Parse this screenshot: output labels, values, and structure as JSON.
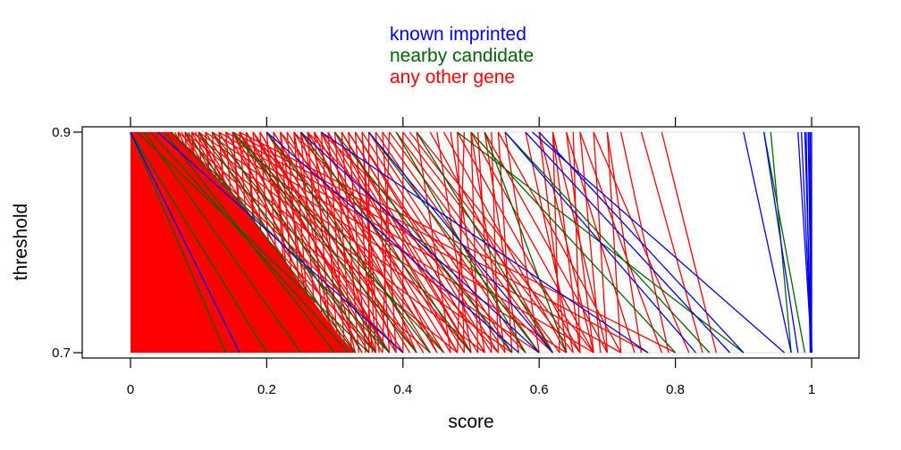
{
  "chart_data": {
    "type": "line",
    "xlabel": "score",
    "ylabel": "threshold",
    "xlim": [
      -0.07,
      1.07
    ],
    "ylim": [
      0.7,
      0.9
    ],
    "xticks": [
      {
        "value": 0,
        "label": "0"
      },
      {
        "value": 0.2,
        "label": "0.2"
      },
      {
        "value": 0.4,
        "label": "0.4"
      },
      {
        "value": 0.6,
        "label": "0.6"
      },
      {
        "value": 0.8,
        "label": "0.8"
      },
      {
        "value": 1,
        "label": "1"
      }
    ],
    "yticks": [
      {
        "value": 0.7,
        "label": "0.7"
      },
      {
        "value": 0.9,
        "label": "0.9"
      }
    ],
    "grid": false,
    "legend_position": "top-center",
    "legend": [
      {
        "label": "known imprinted",
        "color": "#0000ee"
      },
      {
        "label": "nearby candidate",
        "color": "#006400"
      },
      {
        "label": "any other gene",
        "color": "#ff0000"
      }
    ],
    "series": [
      {
        "name": "any other gene",
        "color": "#ff0000",
        "segments": [
          [
            0.003,
            0.03
          ],
          [
            0.005,
            0.04
          ],
          [
            0.008,
            0.05
          ],
          [
            0.01,
            0.06
          ],
          [
            0.012,
            0.07
          ],
          [
            0.015,
            0.08
          ],
          [
            0.018,
            0.09
          ],
          [
            0.02,
            0.1
          ],
          [
            0.022,
            0.11
          ],
          [
            0.025,
            0.12
          ],
          [
            0.028,
            0.13
          ],
          [
            0.03,
            0.14
          ],
          [
            0.032,
            0.15
          ],
          [
            0.035,
            0.16
          ],
          [
            0.038,
            0.17
          ],
          [
            0.04,
            0.18
          ],
          [
            0.045,
            0.19
          ],
          [
            0.05,
            0.2
          ],
          [
            0.055,
            0.21
          ],
          [
            0.06,
            0.22
          ],
          [
            0.065,
            0.23
          ],
          [
            0.07,
            0.24
          ],
          [
            0.075,
            0.25
          ],
          [
            0.08,
            0.26
          ],
          [
            0.085,
            0.27
          ],
          [
            0.09,
            0.28
          ],
          [
            0.095,
            0.29
          ],
          [
            0.1,
            0.3
          ],
          [
            0.11,
            0.31
          ],
          [
            0.12,
            0.32
          ],
          [
            0.13,
            0.33
          ],
          [
            0.14,
            0.34
          ],
          [
            0.15,
            0.35
          ],
          [
            0.16,
            0.36
          ],
          [
            0.17,
            0.37
          ],
          [
            0.18,
            0.38
          ],
          [
            0.19,
            0.39
          ],
          [
            0.2,
            0.4
          ],
          [
            0.21,
            0.41
          ],
          [
            0.22,
            0.42
          ],
          [
            0.23,
            0.43
          ],
          [
            0.24,
            0.44
          ],
          [
            0.25,
            0.45
          ],
          [
            0.26,
            0.46
          ],
          [
            0.27,
            0.47
          ],
          [
            0.28,
            0.48
          ],
          [
            0.29,
            0.49
          ],
          [
            0.3,
            0.5
          ],
          [
            0.31,
            0.51
          ],
          [
            0.32,
            0.52
          ],
          [
            0.33,
            0.53
          ],
          [
            0.34,
            0.55
          ],
          [
            0.35,
            0.56
          ],
          [
            0.36,
            0.58
          ],
          [
            0.37,
            0.6
          ],
          [
            0.38,
            0.62
          ],
          [
            0.39,
            0.63
          ],
          [
            0.4,
            0.65
          ],
          [
            0.41,
            0.66
          ],
          [
            0.42,
            0.68
          ],
          [
            0.0,
            0.02
          ],
          [
            0.005,
            0.025
          ],
          [
            0.01,
            0.035
          ],
          [
            0.02,
            0.045
          ],
          [
            0.03,
            0.055
          ],
          [
            0.04,
            0.065
          ],
          [
            0.05,
            0.075
          ],
          [
            0.06,
            0.085
          ],
          [
            0.07,
            0.095
          ],
          [
            0.08,
            0.105
          ],
          [
            0.09,
            0.115
          ],
          [
            0.1,
            0.125
          ],
          [
            0.11,
            0.135
          ],
          [
            0.12,
            0.145
          ],
          [
            0.13,
            0.155
          ],
          [
            0.14,
            0.165
          ],
          [
            0.15,
            0.175
          ],
          [
            0.16,
            0.185
          ],
          [
            0.17,
            0.195
          ],
          [
            0.18,
            0.205
          ],
          [
            0.19,
            0.215
          ],
          [
            0.2,
            0.225
          ],
          [
            0.21,
            0.235
          ],
          [
            0.22,
            0.245
          ],
          [
            0.23,
            0.255
          ],
          [
            0.24,
            0.265
          ],
          [
            0.25,
            0.275
          ],
          [
            0.26,
            0.285
          ],
          [
            0.27,
            0.295
          ],
          [
            0.28,
            0.305
          ],
          [
            0.29,
            0.315
          ],
          [
            0.3,
            0.325
          ],
          [
            0.31,
            0.335
          ],
          [
            0.32,
            0.345
          ],
          [
            0.33,
            0.355
          ],
          [
            0.34,
            0.365
          ],
          [
            0.06,
            0.18
          ],
          [
            0.08,
            0.22
          ],
          [
            0.1,
            0.26
          ],
          [
            0.12,
            0.3
          ],
          [
            0.14,
            0.34
          ],
          [
            0.16,
            0.38
          ],
          [
            0.18,
            0.42
          ],
          [
            0.2,
            0.46
          ],
          [
            0.22,
            0.5
          ],
          [
            0.24,
            0.54
          ],
          [
            0.26,
            0.58
          ],
          [
            0.28,
            0.62
          ],
          [
            0.01,
            0.2
          ],
          [
            0.02,
            0.24
          ],
          [
            0.03,
            0.28
          ],
          [
            0.04,
            0.32
          ],
          [
            0.05,
            0.36
          ],
          [
            0.06,
            0.4
          ],
          [
            0.07,
            0.44
          ],
          [
            0.08,
            0.48
          ],
          [
            0.09,
            0.52
          ],
          [
            0.1,
            0.56
          ],
          [
            0.11,
            0.6
          ],
          [
            0.12,
            0.64
          ],
          [
            0.13,
            0.68
          ],
          [
            0.14,
            0.72
          ],
          [
            0.15,
            0.76
          ],
          [
            0.16,
            0.8
          ],
          [
            0.21,
            0.24
          ],
          [
            0.22,
            0.27
          ],
          [
            0.24,
            0.3
          ],
          [
            0.25,
            0.33
          ],
          [
            0.26,
            0.36
          ],
          [
            0.27,
            0.39
          ],
          [
            0.28,
            0.42
          ],
          [
            0.29,
            0.45
          ],
          [
            0.3,
            0.48
          ],
          [
            0.31,
            0.5
          ],
          [
            0.32,
            0.52
          ],
          [
            0.33,
            0.54
          ],
          [
            0.4,
            0.4
          ],
          [
            0.38,
            0.37
          ],
          [
            0.35,
            0.35
          ],
          [
            0.34,
            0.36
          ],
          [
            0.36,
            0.38
          ],
          [
            0.37,
            0.39
          ],
          [
            0.42,
            0.47
          ],
          [
            0.45,
            0.5
          ],
          [
            0.47,
            0.52
          ],
          [
            0.5,
            0.55
          ],
          [
            0.52,
            0.57
          ],
          [
            0.55,
            0.6
          ],
          [
            0.49,
            0.48
          ],
          [
            0.48,
            0.49
          ],
          [
            0.5,
            0.51
          ],
          [
            0.51,
            0.53
          ],
          [
            0.53,
            0.54
          ],
          [
            0.54,
            0.56
          ],
          [
            0.6,
            0.64
          ],
          [
            0.62,
            0.66
          ],
          [
            0.64,
            0.68
          ],
          [
            0.66,
            0.69
          ],
          [
            0.68,
            0.7
          ],
          [
            0.7,
            0.72
          ],
          [
            0.58,
            0.65
          ],
          [
            0.6,
            0.68
          ],
          [
            0.62,
            0.7
          ],
          [
            0.64,
            0.74
          ],
          [
            0.66,
            0.78
          ],
          [
            0.68,
            0.82
          ],
          [
            0.44,
            0.62
          ],
          [
            0.46,
            0.64
          ],
          [
            0.48,
            0.66
          ],
          [
            0.5,
            0.68
          ],
          [
            0.52,
            0.7
          ],
          [
            0.54,
            0.72
          ],
          [
            0.78,
            0.86
          ],
          [
            0.62,
            0.63
          ],
          [
            0.65,
            0.66
          ],
          [
            0.7,
            0.75
          ],
          [
            0.72,
            0.79
          ],
          [
            0.75,
            0.84
          ],
          [
            0.01,
            0.12
          ],
          [
            0.02,
            0.14
          ],
          [
            0.03,
            0.16
          ],
          [
            0.04,
            0.18
          ],
          [
            0.05,
            0.2
          ],
          [
            0.06,
            0.22
          ],
          [
            0.15,
            0.3
          ],
          [
            0.16,
            0.32
          ],
          [
            0.17,
            0.34
          ],
          [
            0.18,
            0.36
          ],
          [
            0.19,
            0.38
          ],
          [
            0.2,
            0.4
          ],
          [
            0.005,
            0.06
          ],
          [
            0.015,
            0.09
          ],
          [
            0.025,
            0.11
          ],
          [
            0.035,
            0.13
          ],
          [
            0.045,
            0.15
          ],
          [
            0.055,
            0.17
          ],
          [
            0.07,
            0.1
          ],
          [
            0.09,
            0.12
          ],
          [
            0.11,
            0.14
          ],
          [
            0.13,
            0.16
          ],
          [
            0.15,
            0.18
          ],
          [
            0.17,
            0.2
          ]
        ]
      },
      {
        "name": "nearby candidate",
        "color": "#006400",
        "segments": [
          [
            0.0,
            0.14
          ],
          [
            0.03,
            0.32
          ],
          [
            0.05,
            0.3
          ],
          [
            0.08,
            0.33
          ],
          [
            0.1,
            0.36
          ],
          [
            0.02,
            0.25
          ],
          [
            0.12,
            0.38
          ],
          [
            0.15,
            0.42
          ],
          [
            0.2,
            0.44
          ],
          [
            0.25,
            0.5
          ],
          [
            0.3,
            0.56
          ],
          [
            0.35,
            0.6
          ],
          [
            0.39,
            0.58
          ],
          [
            0.42,
            0.62
          ],
          [
            0.48,
            0.9
          ],
          [
            0.5,
            0.8
          ],
          [
            0.52,
            0.64
          ],
          [
            0.55,
            0.85
          ],
          [
            0.94,
            0.97
          ],
          [
            0.93,
            0.99
          ],
          [
            0.0,
            0.2
          ],
          [
            0.01,
            0.35
          ],
          [
            0.06,
            0.38
          ],
          [
            0.15,
            0.46
          ]
        ]
      },
      {
        "name": "known imprinted",
        "color": "#0000ee",
        "segments": [
          [
            0.0,
            0.16
          ],
          [
            0.04,
            0.4
          ],
          [
            0.2,
            0.57
          ],
          [
            0.25,
            0.6
          ],
          [
            0.28,
            0.76
          ],
          [
            0.35,
            0.62
          ],
          [
            0.55,
            0.83
          ],
          [
            0.59,
            0.96
          ],
          [
            0.9,
            0.97
          ],
          [
            0.93,
            0.98
          ],
          [
            0.98,
            1.0
          ],
          [
            0.985,
            1.0
          ],
          [
            0.99,
            1.0
          ],
          [
            0.995,
            1.0
          ],
          [
            0.998,
            1.0
          ],
          [
            1.0,
            1.0
          ],
          [
            0.992,
            0.998
          ],
          [
            0.996,
            1.0
          ],
          [
            0.58,
            0.88
          ],
          [
            0.6,
            0.9
          ]
        ]
      }
    ]
  }
}
